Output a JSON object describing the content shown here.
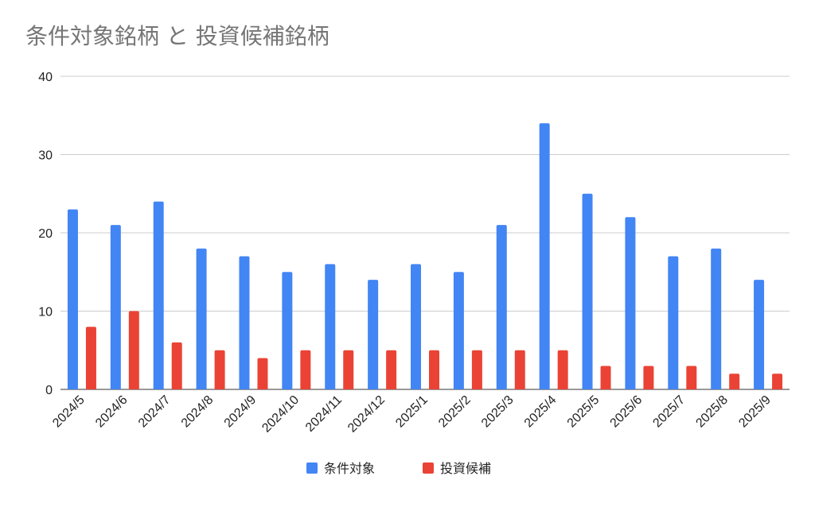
{
  "chart_data": {
    "type": "bar",
    "title": "条件対象銘柄 と 投資候補銘柄",
    "xlabel": "",
    "ylabel": "",
    "ylim": [
      0,
      40
    ],
    "yticks": [
      0,
      10,
      20,
      30,
      40
    ],
    "grid": true,
    "legend_position": "bottom",
    "categories": [
      "2024/5",
      "2024/6",
      "2024/7",
      "2024/8",
      "2024/9",
      "2024/10",
      "2024/11",
      "2024/12",
      "2025/1",
      "2025/2",
      "2025/3",
      "2025/4",
      "2025/5",
      "2025/6",
      "2025/7",
      "2025/8",
      "2025/9"
    ],
    "series": [
      {
        "name": "条件対象",
        "color": "#4285F4",
        "values": [
          23,
          21,
          24,
          18,
          17,
          15,
          16,
          14,
          16,
          15,
          21,
          34,
          25,
          22,
          17,
          18,
          14
        ]
      },
      {
        "name": "投資候補",
        "color": "#EA4335",
        "values": [
          8,
          10,
          6,
          5,
          4,
          5,
          5,
          5,
          5,
          5,
          5,
          5,
          3,
          3,
          3,
          2,
          2
        ]
      }
    ]
  }
}
